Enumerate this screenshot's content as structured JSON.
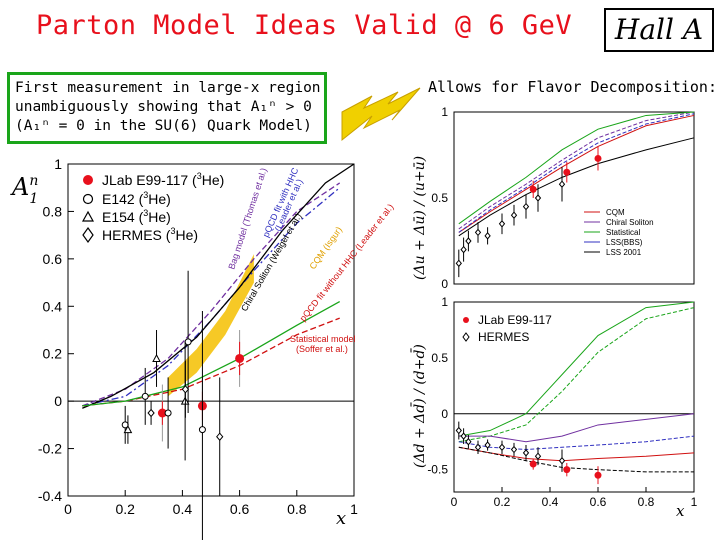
{
  "slide": {
    "title": "Parton Model Ideas Valid @ 6 GeV",
    "badge": "Hall A",
    "left_box_lines": [
      "First measurement in large-x region",
      "unambiguously showing that A₁ⁿ > 0",
      "(A₁ⁿ = 0 in the SU(6) Quark Model)"
    ],
    "right_heading": "Allows for Flavor Decomposition:",
    "colors": {
      "title": "#e8101c",
      "box_border": "#1aa51a",
      "arrow": "#f0d000",
      "arrow_edge": "#c8a000"
    }
  },
  "chart_data": [
    {
      "type": "scatter",
      "ylabel_main": "A",
      "ylabel_sub": "1",
      "ylabel_sup": "n",
      "xlabel": "x",
      "xlim": [
        0,
        1
      ],
      "ylim": [
        -0.4,
        1
      ],
      "xticks": [
        "0",
        "0.2",
        "0.4",
        "0.6",
        "0.8",
        "1"
      ],
      "yticks": [
        "-0.4",
        "-0.2",
        "0",
        "0.2",
        "0.4",
        "0.6",
        "0.8",
        "1"
      ],
      "legend_placement": "top-left",
      "legend": [
        {
          "marker": "filled-circle",
          "text": "JLab E99-117 (",
          "sup": "3",
          "tail": "He)"
        },
        {
          "marker": "open-circle",
          "text": "E142 (",
          "sup": "3",
          "tail": "He)"
        },
        {
          "marker": "open-triangle",
          "text": "E154 (",
          "sup": "3",
          "tail": "He)"
        },
        {
          "marker": "open-diamond",
          "text": "HERMES (",
          "sup": "3",
          "tail": "He)"
        }
      ],
      "curve_labels": [
        {
          "text": "Bag model (Thomas et al.)",
          "color": "#7030a0"
        },
        {
          "text": "pQCD fit with HHC",
          "color": "#3030c0"
        },
        {
          "text": "(Leader et al.)",
          "color": "#3030c0"
        },
        {
          "text": "Chiral Soliton (Weigel et al.)",
          "color": "#000000"
        },
        {
          "text": "CQM (Isgur)",
          "color": "#e0a000"
        },
        {
          "text": "pQCD fit without HHC (Leader et al.)",
          "color": "#d01010"
        },
        {
          "text": "Statistical model",
          "color": "#d01010"
        },
        {
          "text": "(Soffer et al.)",
          "color": "#d01010"
        }
      ],
      "series": [
        {
          "name": "JLab E99-117",
          "color": "#e8101c",
          "x": [
            0.33,
            0.47,
            0.6
          ],
          "y": [
            -0.05,
            -0.02,
            0.18
          ],
          "err": [
            0.05,
            0.06,
            0.07
          ],
          "syst": [
            0.12,
            0.12,
            0.12
          ]
        },
        {
          "name": "E142",
          "x": [
            0.2,
            0.27,
            0.35,
            0.42,
            0.47
          ],
          "y": [
            -0.1,
            0.02,
            -0.05,
            0.25,
            -0.12
          ],
          "err": [
            0.08,
            0.12,
            0.15,
            0.3,
            0.5
          ]
        },
        {
          "name": "E154",
          "x": [
            0.22,
            0.32,
            0.42
          ],
          "y": [
            -0.12,
            0.18,
            0.0
          ],
          "err": [
            0.06,
            0.12,
            0.25
          ]
        },
        {
          "name": "HERMES",
          "x": [
            0.28,
            0.4,
            0.52
          ],
          "y": [
            -0.05,
            0.05,
            -0.15
          ],
          "err": [
            0.05,
            0.12,
            0.25
          ]
        }
      ],
      "models": [
        {
          "name": "Bag model",
          "color": "#7030a0",
          "style": "dash",
          "x": [
            0.05,
            0.2,
            0.35,
            0.5,
            0.65,
            0.8,
            0.95
          ],
          "y": [
            -0.02,
            0.05,
            0.18,
            0.38,
            0.6,
            0.8,
            0.92
          ]
        },
        {
          "name": "pQCD HHC",
          "color": "#3030c0",
          "style": "dashdot",
          "x": [
            0.05,
            0.2,
            0.35,
            0.5,
            0.65,
            0.8,
            0.95
          ],
          "y": [
            -0.02,
            0.02,
            0.15,
            0.34,
            0.55,
            0.75,
            0.9
          ]
        },
        {
          "name": "Chiral Soliton",
          "color": "#000000",
          "style": "solid",
          "x": [
            0.05,
            0.15,
            0.3,
            0.45,
            0.6,
            0.75,
            0.9,
            1.0
          ],
          "y": [
            -0.03,
            0.02,
            0.12,
            0.27,
            0.48,
            0.72,
            0.92,
            1.0
          ]
        },
        {
          "name": "pQCD no HHC",
          "color": "#d01010",
          "style": "dash",
          "x": [
            0.05,
            0.2,
            0.4,
            0.6,
            0.8,
            0.95
          ],
          "y": [
            -0.02,
            0.0,
            0.05,
            0.15,
            0.28,
            0.35
          ]
        },
        {
          "name": "Statistical model",
          "color": "#1aa51a",
          "style": "solid",
          "x": [
            0.05,
            0.2,
            0.4,
            0.6,
            0.8,
            0.95
          ],
          "y": [
            -0.02,
            0.0,
            0.06,
            0.18,
            0.32,
            0.42
          ]
        }
      ],
      "cqm_band": {
        "color": "#f5c000",
        "x": [
          0.35,
          0.45,
          0.55,
          0.65
        ],
        "ylow": [
          0.02,
          0.12,
          0.28,
          0.5
        ],
        "yhigh": [
          0.1,
          0.22,
          0.38,
          0.62
        ]
      }
    },
    {
      "type": "line",
      "ylabel": "(Δu + Δū) / (u+ū)",
      "xlim": [
        0,
        1
      ],
      "ylim": [
        0,
        1
      ],
      "yticks": [
        "0",
        "0.5",
        "1"
      ],
      "legend_placement": "right",
      "legend": [
        "CQM",
        "Chiral Soliton",
        "Statistical",
        "LSS(BBS)",
        "LSS 2001"
      ],
      "legend_colors": [
        "#d01010",
        "#7030a0",
        "#1aa51a",
        "#3030c0",
        "#000000"
      ],
      "series": [
        {
          "name": "JLab E99-117",
          "x": [
            0.33,
            0.47,
            0.6
          ],
          "y": [
            0.55,
            0.65,
            0.73
          ],
          "err": [
            0.05,
            0.06,
            0.07
          ]
        },
        {
          "name": "HERMES",
          "x": [
            0.02,
            0.04,
            0.06,
            0.1,
            0.14,
            0.2,
            0.25,
            0.3,
            0.35,
            0.45
          ],
          "y": [
            0.12,
            0.2,
            0.25,
            0.3,
            0.28,
            0.35,
            0.4,
            0.45,
            0.5,
            0.58
          ],
          "err": [
            0.08,
            0.07,
            0.06,
            0.06,
            0.05,
            0.06,
            0.06,
            0.07,
            0.08,
            0.1
          ]
        }
      ]
    },
    {
      "type": "line",
      "ylabel": "(Δd + Δd̄) / (d+d̄)",
      "xlabel": "x",
      "xlim": [
        0,
        1
      ],
      "ylim": [
        -0.7,
        1
      ],
      "xticks": [
        "0",
        "0.2",
        "0.4",
        "0.6",
        "0.8",
        "1"
      ],
      "yticks": [
        "-0.5",
        "0",
        "0.5",
        "1"
      ],
      "legend_placement": "top-left",
      "legend": [
        "JLab E99-117",
        "HERMES"
      ],
      "series": [
        {
          "name": "JLab E99-117",
          "x": [
            0.33,
            0.47,
            0.6
          ],
          "y": [
            -0.45,
            -0.5,
            -0.55
          ],
          "err": [
            0.05,
            0.06,
            0.08
          ]
        },
        {
          "name": "HERMES",
          "x": [
            0.02,
            0.04,
            0.06,
            0.1,
            0.14,
            0.2,
            0.25,
            0.3,
            0.35,
            0.45
          ],
          "y": [
            -0.15,
            -0.2,
            -0.25,
            -0.3,
            -0.28,
            -0.3,
            -0.32,
            -0.35,
            -0.38,
            -0.42
          ],
          "err": [
            0.08,
            0.07,
            0.06,
            0.06,
            0.05,
            0.06,
            0.06,
            0.07,
            0.08,
            0.1
          ]
        }
      ]
    }
  ]
}
